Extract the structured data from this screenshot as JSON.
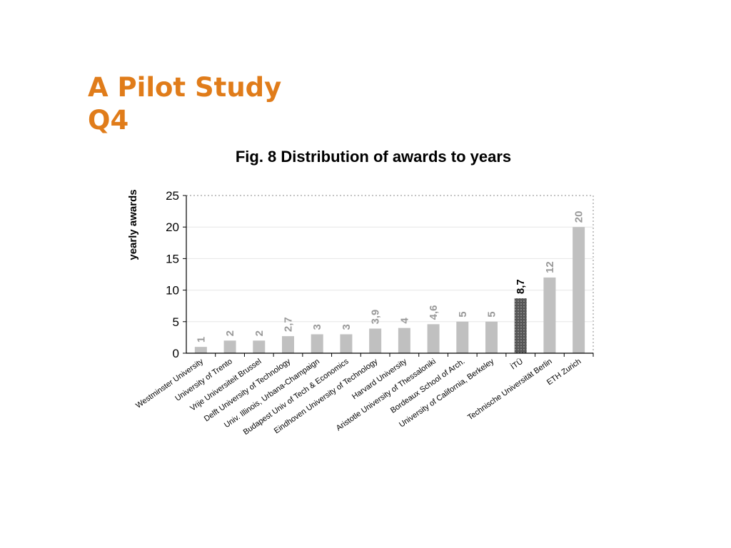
{
  "slide": {
    "title_line1": "A Pilot Study",
    "title_line2": "Q4"
  },
  "colors": {
    "title": "#e07c1a",
    "bar": "#c0c0c0",
    "bar_highlight": "#555555",
    "data_label": "#999999",
    "data_label_highlight": "#000000"
  },
  "chart_data": {
    "type": "bar",
    "title": "Fig. 8  Distribution of awards to years",
    "xlabel": "",
    "ylabel": "yearly awards",
    "ylim": [
      0,
      25
    ],
    "yticks": [
      0,
      5,
      10,
      15,
      20,
      25
    ],
    "grid": true,
    "legend": "none",
    "categories": [
      "Westminster University",
      "University of Trento",
      "Vrije Universiteit Brussel",
      "Delft University of Technology",
      "Univ. Illinois, Urbana-Champaign",
      "Budapest Univ of Tech & Economics",
      "Eindhoven University of Technology",
      "Harvard University",
      "Aristotle University of Thessaloniki",
      "Bordeaux School of Arch.",
      "University of California, Berkeley",
      "İTÜ",
      "Technische Universität Berlin",
      "ETH Zurich"
    ],
    "values": [
      1,
      2,
      2,
      2.7,
      3,
      3,
      3.9,
      4,
      4.6,
      5,
      5,
      8.7,
      12,
      20
    ],
    "data_labels": [
      "1",
      "2",
      "2",
      "2,7",
      "3",
      "3",
      "3,9",
      "4",
      "4,6",
      "5",
      "5",
      "8,7",
      "12",
      "20"
    ],
    "highlight_category": "İTÜ"
  }
}
